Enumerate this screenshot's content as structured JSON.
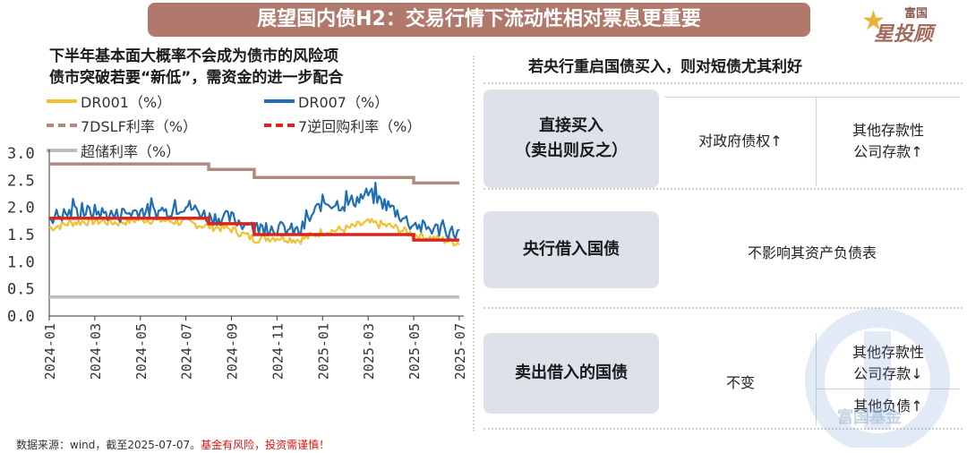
{
  "header": {
    "title": "展望国内债H2：交易行情下流动性相对票息更重要"
  },
  "logo": {
    "top": "富国",
    "main": "星投顾"
  },
  "left": {
    "title_line1": "下半年基本面大概率不会成为债市的风险项",
    "title_line2": "债市突破若要“新低”，需资金的进一步配合"
  },
  "right": {
    "title": "若央行重启国债买入，则对短债尤其利好",
    "rows": [
      {
        "label": "直接买入\n（卖出则反之）",
        "col1": "对政府债权↑",
        "col2": "其他存款性\n公司存款↑"
      },
      {
        "label": "央行借入国债",
        "merged": "不影响其资产负债表"
      },
      {
        "label": "卖出借入的国债",
        "col1": "不变",
        "col2a": "其他存款性\n公司存款↓",
        "col2b": "其他负债↑"
      }
    ]
  },
  "watermark": {
    "text": "富国基金"
  },
  "footer": {
    "source": "数据来源：wind，截至2025-07-07。",
    "warning": "基金有风险，投资需谨慎！"
  },
  "colors": {
    "dr001": "#f2c12e",
    "dr007": "#1f6fb5",
    "dslf": "#b08a7e",
    "reverse_repo": "#d7261e",
    "excess": "#bdbdbd"
  },
  "chart_data": {
    "type": "line",
    "ylim": [
      0,
      3.0
    ],
    "yticks": [
      "0.0",
      "0.5",
      "1.0",
      "1.5",
      "2.0",
      "2.5",
      "3.0"
    ],
    "xticks": [
      "2024-01",
      "2024-03",
      "2024-05",
      "2024-07",
      "2024-09",
      "2024-11",
      "2025-01",
      "2025-03",
      "2025-05",
      "2025-07"
    ],
    "series": [
      {
        "name": "DR001（%）",
        "key": "dr001",
        "x": [
          "2024-01",
          "2024-02",
          "2024-03",
          "2024-04",
          "2024-05",
          "2024-06",
          "2024-07",
          "2024-08",
          "2024-09",
          "2024-10",
          "2024-11",
          "2024-12",
          "2025-01",
          "2025-02",
          "2025-03",
          "2025-04",
          "2025-05",
          "2025-06",
          "2025-07"
        ],
        "values": [
          1.62,
          1.72,
          1.75,
          1.72,
          1.78,
          1.76,
          1.72,
          1.65,
          1.6,
          1.42,
          1.45,
          1.4,
          1.55,
          1.6,
          1.72,
          1.65,
          1.5,
          1.42,
          1.35
        ]
      },
      {
        "name": "DR007（%）",
        "key": "dr007",
        "x": [
          "2024-01",
          "2024-02",
          "2024-03",
          "2024-04",
          "2024-05",
          "2024-06",
          "2024-07",
          "2024-08",
          "2024-09",
          "2024-10",
          "2024-11",
          "2024-12",
          "2025-01",
          "2025-02",
          "2025-03",
          "2025-04",
          "2025-05",
          "2025-06",
          "2025-07"
        ],
        "values": [
          1.82,
          1.9,
          1.92,
          1.85,
          1.95,
          1.9,
          2.05,
          1.82,
          1.8,
          1.62,
          1.62,
          1.55,
          2.1,
          2.05,
          2.25,
          2.0,
          1.65,
          1.6,
          1.52
        ]
      },
      {
        "name": "7DSLF利率（%）",
        "key": "dslf",
        "x": [
          "2024-01",
          "2024-07",
          "2024-08",
          "2024-10",
          "2025-05",
          "2025-07"
        ],
        "values": [
          2.8,
          2.8,
          2.7,
          2.55,
          2.45,
          2.45
        ]
      },
      {
        "name": "7逆回购利率（%）",
        "key": "reverse_repo",
        "x": [
          "2024-01",
          "2024-07",
          "2024-08",
          "2024-10",
          "2025-05",
          "2025-07"
        ],
        "values": [
          1.8,
          1.8,
          1.7,
          1.5,
          1.4,
          1.4
        ]
      },
      {
        "name": "超储利率（%）",
        "key": "excess",
        "x": [
          "2024-01",
          "2025-07"
        ],
        "values": [
          0.35,
          0.35
        ]
      }
    ]
  }
}
